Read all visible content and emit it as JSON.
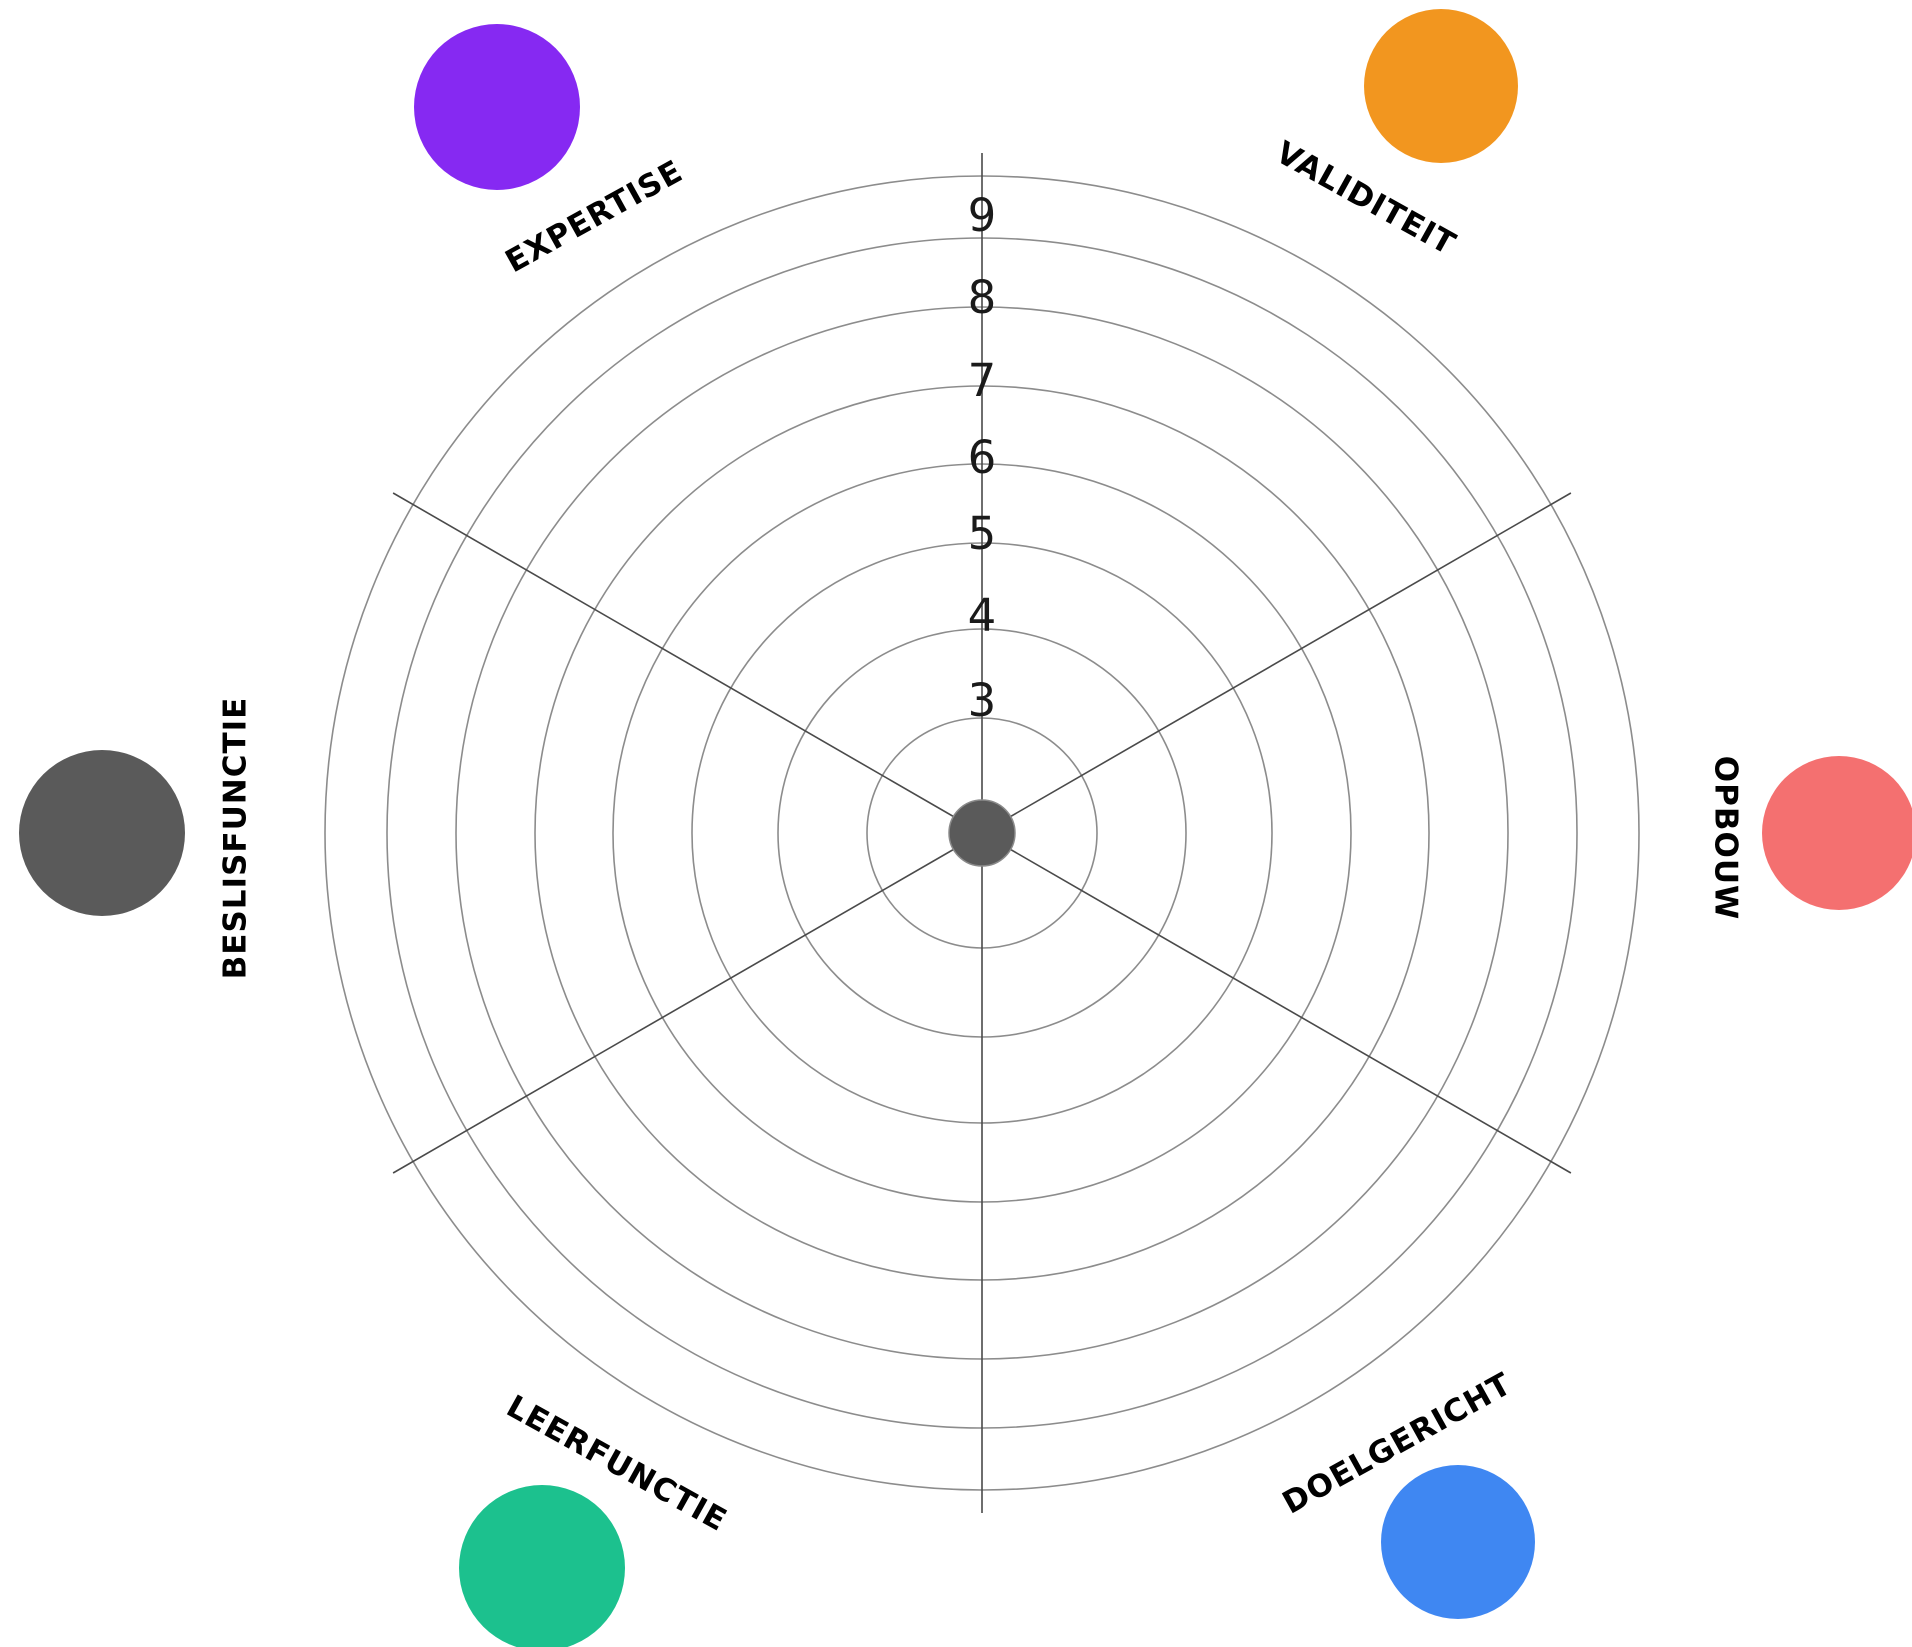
{
  "scale": {
    "labels": [
      "3",
      "4",
      "5",
      "6",
      "7",
      "8",
      "9"
    ],
    "rings": 8
  },
  "center": {
    "color": "#5a5a5a",
    "icon": "center-dot"
  },
  "dimensions": [
    {
      "id": "expertise",
      "label": "EXPERTISE",
      "color": "#8629f2"
    },
    {
      "id": "validiteit",
      "label": "VALIDITEIT",
      "color": "#f2961f"
    },
    {
      "id": "opbouw",
      "label": "OPBOUW",
      "color": "#f47070"
    },
    {
      "id": "doelgericht",
      "label": "DOELGERICHT",
      "color": "#3f87f2"
    },
    {
      "id": "leerfunctie",
      "label": "LEERFUNCTIE",
      "color": "#1cc18e"
    },
    {
      "id": "beslisfunctie",
      "label": "BESLISFUNCTIE",
      "color": "#5a5a5a"
    }
  ]
}
